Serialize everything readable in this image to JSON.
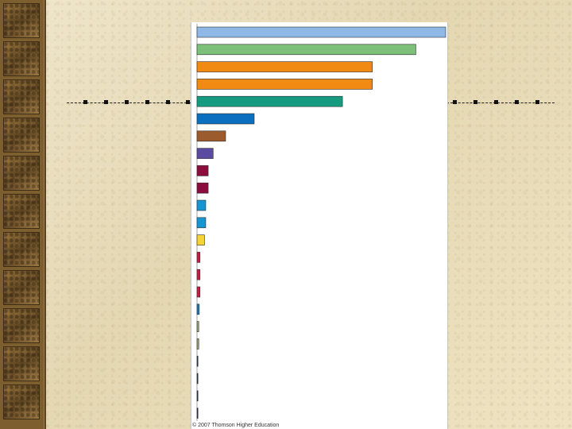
{
  "slide": {
    "copyright": "© 2007 Thomson Higher Education"
  },
  "chart_data": {
    "type": "bar",
    "orientation": "horizontal",
    "title": "",
    "xlabel": "",
    "ylabel": "",
    "categories": [
      "",
      "",
      "",
      "",
      "",
      "",
      "",
      "",
      "",
      "",
      "",
      "",
      "",
      "",
      "",
      "",
      "",
      "",
      "",
      "",
      "",
      "",
      ""
    ],
    "values": [
      100,
      88,
      70.5,
      70.5,
      58.5,
      23,
      11.5,
      6.5,
      4.5,
      4.5,
      3.5,
      3.5,
      3,
      1.2,
      1.2,
      1.2,
      0.9,
      0.7,
      0.7,
      0.3,
      0.3,
      0.3,
      0.3
    ],
    "colors": [
      "#8fb8e6",
      "#7cc07a",
      "#f08a12",
      "#f08a12",
      "#169b80",
      "#0b6fc0",
      "#9b5b2d",
      "#5a4aa0",
      "#8b0d3d",
      "#8b0d3d",
      "#1795d2",
      "#1795d2",
      "#f4d437",
      "#c61d45",
      "#c61d45",
      "#c61d45",
      "#1d7bb8",
      "#9aa776",
      "#9aa776",
      "#1f2f54",
      "#1f2f54",
      "#1f2f54",
      "#1f2f54"
    ],
    "xlim": [
      0,
      100
    ],
    "grid": false,
    "legend": false
  }
}
